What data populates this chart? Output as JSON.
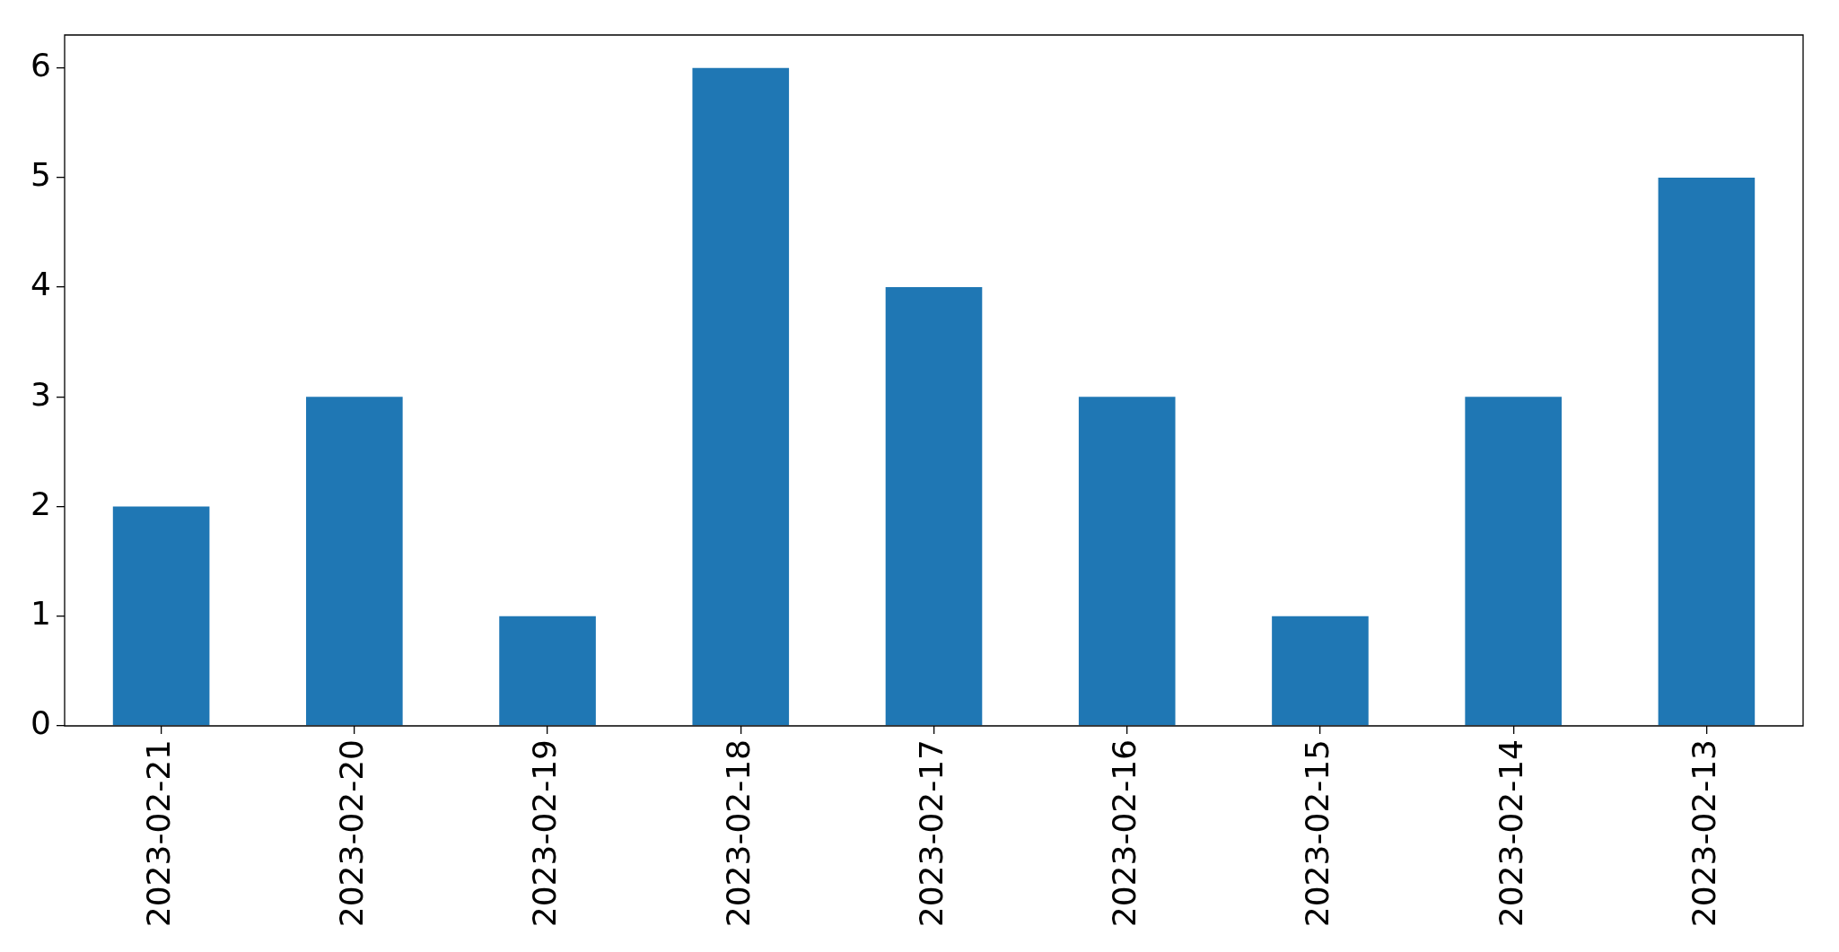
{
  "chart_data": {
    "type": "bar",
    "categories": [
      "2023-02-21",
      "2023-02-20",
      "2023-02-19",
      "2023-02-18",
      "2023-02-17",
      "2023-02-16",
      "2023-02-15",
      "2023-02-14",
      "2023-02-13"
    ],
    "values": [
      2,
      3,
      1,
      6,
      4,
      3,
      1,
      3,
      5
    ],
    "color": "#1f77b4",
    "ylim": [
      0,
      6.3
    ],
    "yticks": [
      0,
      1,
      2,
      3,
      4,
      5,
      6
    ],
    "legend": false
  }
}
